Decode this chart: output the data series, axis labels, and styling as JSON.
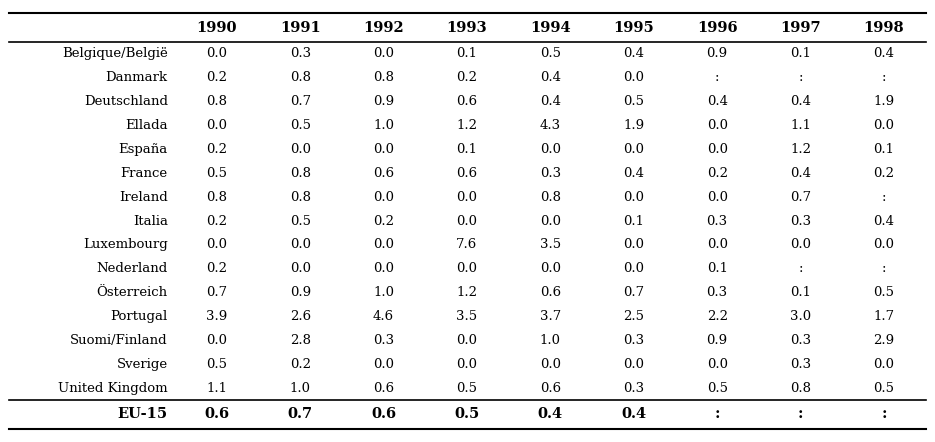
{
  "columns": [
    "1990",
    "1991",
    "1992",
    "1993",
    "1994",
    "1995",
    "1996",
    "1997",
    "1998"
  ],
  "rows": [
    [
      "Belgique/België",
      "0.0",
      "0.3",
      "0.0",
      "0.1",
      "0.5",
      "0.4",
      "0.9",
      "0.1",
      "0.4"
    ],
    [
      "Danmark",
      "0.2",
      "0.8",
      "0.8",
      "0.2",
      "0.4",
      "0.0",
      ":",
      ":",
      ":"
    ],
    [
      "Deutschland",
      "0.8",
      "0.7",
      "0.9",
      "0.6",
      "0.4",
      "0.5",
      "0.4",
      "0.4",
      "1.9"
    ],
    [
      "Ellada",
      "0.0",
      "0.5",
      "1.0",
      "1.2",
      "4.3",
      "1.9",
      "0.0",
      "1.1",
      "0.0"
    ],
    [
      "España",
      "0.2",
      "0.0",
      "0.0",
      "0.1",
      "0.0",
      "0.0",
      "0.0",
      "1.2",
      "0.1"
    ],
    [
      "France",
      "0.5",
      "0.8",
      "0.6",
      "0.6",
      "0.3",
      "0.4",
      "0.2",
      "0.4",
      "0.2"
    ],
    [
      "Ireland",
      "0.8",
      "0.8",
      "0.0",
      "0.0",
      "0.8",
      "0.0",
      "0.0",
      "0.7",
      ":"
    ],
    [
      "Italia",
      "0.2",
      "0.5",
      "0.2",
      "0.0",
      "0.0",
      "0.1",
      "0.3",
      "0.3",
      "0.4"
    ],
    [
      "Luxembourg",
      "0.0",
      "0.0",
      "0.0",
      "7.6",
      "3.5",
      "0.0",
      "0.0",
      "0.0",
      "0.0"
    ],
    [
      "Nederland",
      "0.2",
      "0.0",
      "0.0",
      "0.0",
      "0.0",
      "0.0",
      "0.1",
      ":",
      ":"
    ],
    [
      "Österreich",
      "0.7",
      "0.9",
      "1.0",
      "1.2",
      "0.6",
      "0.7",
      "0.3",
      "0.1",
      "0.5"
    ],
    [
      "Portugal",
      "3.9",
      "2.6",
      "4.6",
      "3.5",
      "3.7",
      "2.5",
      "2.2",
      "3.0",
      "1.7"
    ],
    [
      "Suomi/Finland",
      "0.0",
      "2.8",
      "0.3",
      "0.0",
      "1.0",
      "0.3",
      "0.9",
      "0.3",
      "2.9"
    ],
    [
      "Sverige",
      "0.5",
      "0.2",
      "0.0",
      "0.0",
      "0.0",
      "0.0",
      "0.0",
      "0.3",
      "0.0"
    ],
    [
      "United Kingdom",
      "1.1",
      "1.0",
      "0.6",
      "0.5",
      "0.6",
      "0.3",
      "0.5",
      "0.8",
      "0.5"
    ]
  ],
  "footer_row": [
    "EU-15",
    "0.6",
    "0.7",
    "0.6",
    "0.5",
    "0.4",
    "0.4",
    ":",
    ":",
    ":"
  ],
  "bg_color": "#ffffff",
  "text_color": "#000000",
  "font_size": 9.5,
  "header_font_size": 10.5,
  "footer_font_size": 10.5
}
